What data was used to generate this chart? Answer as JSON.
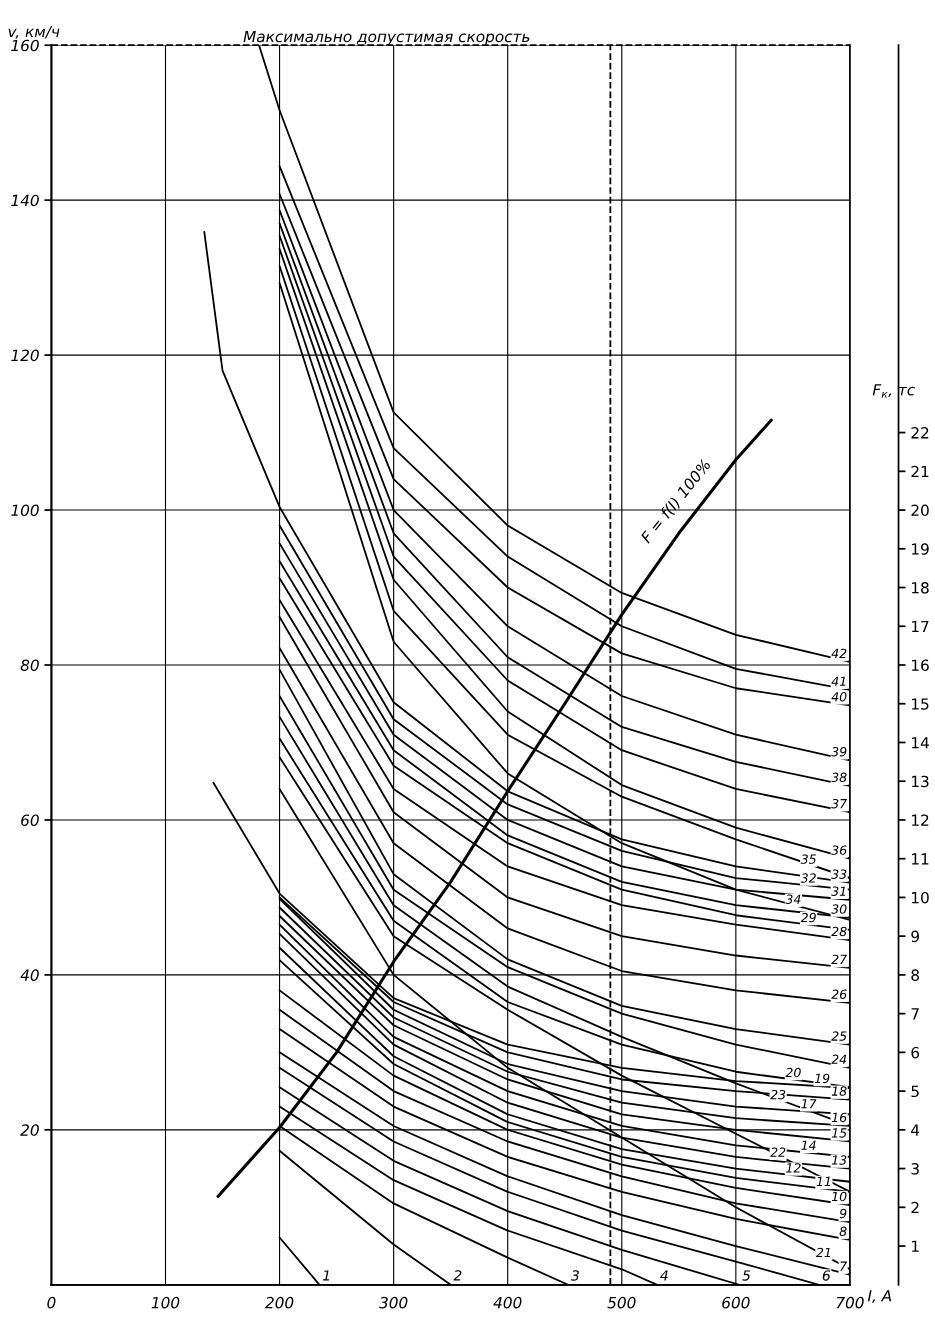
{
  "chart_data": {
    "type": "line",
    "xlabel": "I, A",
    "ylabel": "v, км/ч",
    "y2label": "F$_{к}$, тс",
    "xlim": [
      0,
      700
    ],
    "xticks": [
      0,
      100,
      200,
      300,
      400,
      500,
      600,
      700
    ],
    "ylim": [
      0,
      160
    ],
    "yticks": [
      20,
      40,
      60,
      {
        "value": 80,
        "label": "80"
      },
      100,
      120,
      140,
      160
    ],
    "y2lim": [
      0,
      32
    ],
    "y2ticks": [
      1,
      2,
      3,
      4,
      5,
      6,
      7,
      8,
      9,
      10,
      11,
      12,
      13,
      14,
      15,
      16,
      17,
      18,
      19,
      20,
      21,
      22
    ],
    "grid": true,
    "legend": false,
    "line_style": "solid",
    "ref_lines": [
      {
        "axis": "y",
        "value": 160,
        "label": "Максимально допустимая скорость",
        "line_style": "dashed"
      },
      {
        "axis": "x",
        "value": 490,
        "label": null,
        "line_style": "dashed"
      }
    ],
    "series": [
      {
        "name": "1",
        "color": "#000000",
        "x": [
          200,
          235
        ],
        "values": [
          6.1,
          0
        ]
      },
      {
        "name": "2",
        "color": "#000000",
        "x": [
          200,
          300,
          350
        ],
        "values": [
          17.3,
          5.2,
          0
        ]
      },
      {
        "name": "3",
        "color": "#000000",
        "x": [
          200,
          300,
          400,
          453
        ],
        "values": [
          20.5,
          10.5,
          3.5,
          0
        ]
      },
      {
        "name": "4",
        "color": "#000000",
        "x": [
          200,
          300,
          400,
          500,
          531
        ],
        "values": [
          23,
          13.5,
          7,
          2,
          0
        ]
      },
      {
        "name": "5",
        "color": "#000000",
        "x": [
          200,
          300,
          400,
          500,
          603
        ],
        "values": [
          25.5,
          16,
          9.5,
          4.5,
          0
        ]
      },
      {
        "name": "6",
        "color": "#000000",
        "x": [
          200,
          300,
          400,
          500,
          600,
          673
        ],
        "values": [
          28,
          18.5,
          12,
          7,
          3,
          0
        ]
      },
      {
        "name": "7",
        "color": "#000000",
        "x": [
          200,
          300,
          400,
          500,
          600,
          700
        ],
        "values": [
          30,
          20.5,
          14,
          9,
          5,
          1.3
        ]
      },
      {
        "name": "8",
        "color": "#000000",
        "x": [
          200,
          300,
          400,
          500,
          600,
          700
        ],
        "values": [
          33,
          23,
          16.5,
          12,
          8.5,
          5.8
        ]
      },
      {
        "name": "9",
        "color": "#000000",
        "x": [
          200,
          300,
          400,
          500,
          600,
          700
        ],
        "values": [
          35.5,
          25,
          18.5,
          14,
          10.5,
          8.1
        ]
      },
      {
        "name": "10",
        "color": "#000000",
        "x": [
          200,
          300,
          400,
          500,
          600,
          700
        ],
        "values": [
          38,
          27,
          20,
          15.5,
          12.5,
          10.3
        ]
      },
      {
        "name": "11",
        "color": "#000000",
        "x": [
          200,
          300,
          400,
          500,
          600,
          700
        ],
        "values": [
          41.9,
          28.5,
          21,
          16.5,
          13.8,
          12
        ]
      },
      {
        "name": "12",
        "color": "#000000",
        "x": [
          200,
          300,
          400,
          500,
          600,
          700
        ],
        "values": [
          43.5,
          29.5,
          22,
          17.5,
          15,
          13.3
        ]
      },
      {
        "name": "13",
        "color": "#000000",
        "x": [
          200,
          300,
          400,
          500,
          600,
          700
        ],
        "values": [
          45.3,
          31,
          23.5,
          19,
          16.5,
          15
        ]
      },
      {
        "name": "14",
        "color": "#000000",
        "x": [
          200,
          300,
          400,
          500,
          600,
          700
        ],
        "values": [
          46.5,
          32,
          25,
          20.5,
          18,
          16.5
        ]
      },
      {
        "name": "15",
        "color": "#000000",
        "x": [
          200,
          300,
          400,
          500,
          600,
          700
        ],
        "values": [
          47.6,
          33.5,
          26.5,
          22,
          20,
          18.5
        ]
      },
      {
        "name": "16",
        "color": "#000000",
        "x": [
          200,
          300,
          400,
          500,
          600,
          700
        ],
        "values": [
          48.7,
          34.5,
          27.5,
          23.5,
          21.5,
          20.5
        ]
      },
      {
        "name": "17",
        "color": "#000000",
        "x": [
          200,
          300,
          400,
          500,
          600,
          700
        ],
        "values": [
          49.8,
          35.5,
          28.5,
          25,
          23,
          22
        ]
      },
      {
        "name": "18",
        "color": "#000000",
        "x": [
          200,
          300,
          400,
          500,
          600,
          700
        ],
        "values": [
          50,
          36.5,
          30,
          26.5,
          25,
          23.9
        ]
      },
      {
        "name": "19",
        "color": "#000000",
        "x": [
          142,
          200,
          300,
          400,
          500,
          600,
          700
        ],
        "values": [
          64.8,
          50.5,
          37,
          31,
          28,
          26.3,
          25.4
        ]
      },
      {
        "name": "20",
        "color": "#000000",
        "x": [
          200,
          300,
          400,
          500,
          600,
          700
        ],
        "values": [
          70.5,
          47,
          36.5,
          31,
          27.5,
          25.5
        ]
      },
      {
        "name": "21",
        "color": "#000000",
        "x": [
          200,
          300,
          400,
          500,
          600,
          700
        ],
        "values": [
          64,
          40,
          28,
          19,
          10,
          2
        ]
      },
      {
        "name": "22",
        "color": "#000000",
        "x": [
          200,
          300,
          400,
          500,
          600,
          700
        ],
        "values": [
          68.1,
          45,
          35.5,
          27,
          19.5,
          12
        ]
      },
      {
        "name": "23",
        "color": "#000000",
        "x": [
          200,
          300,
          400,
          500,
          600,
          700
        ],
        "values": [
          73.3,
          49,
          38.5,
          32,
          26,
          20.5
        ]
      },
      {
        "name": "24",
        "color": "#000000",
        "x": [
          200,
          300,
          400,
          500,
          600,
          700
        ],
        "values": [
          76,
          51,
          41,
          35,
          31,
          28
        ]
      },
      {
        "name": "25",
        "color": "#000000",
        "x": [
          200,
          300,
          400,
          500,
          600,
          700
        ],
        "values": [
          79.4,
          53,
          42,
          36,
          33,
          31
        ]
      },
      {
        "name": "26",
        "color": "#000000",
        "x": [
          200,
          300,
          400,
          500,
          600,
          700
        ],
        "values": [
          82.2,
          57,
          46,
          40.5,
          38,
          36.4
        ]
      },
      {
        "name": "27",
        "color": "#000000",
        "x": [
          200,
          300,
          400,
          500,
          600,
          700
        ],
        "values": [
          86.2,
          61,
          50,
          45,
          42.5,
          40.9
        ]
      },
      {
        "name": "28",
        "color": "#000000",
        "x": [
          200,
          300,
          400,
          500,
          600,
          700
        ],
        "values": [
          88.4,
          64,
          54,
          49,
          46.5,
          44.5
        ]
      },
      {
        "name": "29",
        "color": "#000000",
        "x": [
          200,
          300,
          400,
          500,
          600,
          700
        ],
        "values": [
          91.2,
          67,
          57,
          51,
          47.7,
          45.8
        ]
      },
      {
        "name": "30",
        "color": "#000000",
        "x": [
          200,
          300,
          400,
          500,
          600,
          700
        ],
        "values": [
          93.4,
          69,
          58,
          52,
          49,
          47.4
        ]
      },
      {
        "name": "31",
        "color": "#000000",
        "x": [
          200,
          300,
          400,
          500,
          600,
          700
        ],
        "values": [
          95.7,
          71,
          60,
          54,
          51,
          49.7
        ]
      },
      {
        "name": "32",
        "color": "#000000",
        "x": [
          200,
          300,
          400,
          500,
          600,
          700
        ],
        "values": [
          98,
          73,
          62,
          56,
          52.5,
          51
        ]
      },
      {
        "name": "33",
        "color": "#000000",
        "x": [
          134,
          150,
          200,
          300,
          400,
          500,
          600,
          700
        ],
        "values": [
          135.9,
          118,
          100.4,
          75.2,
          63.7,
          57.5,
          54,
          51.9
        ]
      },
      {
        "name": "34",
        "color": "#000000",
        "x": [
          200,
          300,
          400,
          500,
          600,
          700
        ],
        "values": [
          129.3,
          83,
          66,
          57,
          51,
          47.1
        ]
      },
      {
        "name": "35",
        "color": "#000000",
        "x": [
          200,
          300,
          400,
          500,
          600,
          700
        ],
        "values": [
          131.5,
          87,
          71,
          63,
          57.5,
          52.5
        ]
      },
      {
        "name": "36",
        "color": "#000000",
        "x": [
          200,
          300,
          400,
          500,
          600,
          700
        ],
        "values": [
          133.7,
          91,
          74,
          64.5,
          59,
          55
        ]
      },
      {
        "name": "37",
        "color": "#000000",
        "x": [
          200,
          300,
          400,
          500,
          600,
          700
        ],
        "values": [
          135.4,
          94,
          78,
          69,
          64,
          61
        ]
      },
      {
        "name": "38",
        "color": "#000000",
        "x": [
          200,
          300,
          400,
          500,
          600,
          700
        ],
        "values": [
          137,
          97,
          81,
          72,
          67.5,
          64.4
        ]
      },
      {
        "name": "39",
        "color": "#000000",
        "x": [
          200,
          300,
          400,
          500,
          600,
          700
        ],
        "values": [
          138.7,
          100,
          85,
          76,
          71,
          67.7
        ]
      },
      {
        "name": "40",
        "color": "#000000",
        "x": [
          200,
          300,
          400,
          500,
          600,
          700
        ],
        "values": [
          140.8,
          104,
          90,
          81.5,
          77,
          74.8
        ]
      },
      {
        "name": "41",
        "color": "#000000",
        "x": [
          200,
          300,
          400,
          500,
          600,
          700
        ],
        "values": [
          144.4,
          108,
          94,
          85,
          79.5,
          76.8
        ]
      },
      {
        "name": "42",
        "color": "#000000",
        "x": [
          182,
          200,
          300,
          400,
          500,
          600,
          700
        ],
        "values": [
          160,
          151.6,
          112.6,
          98,
          89.3,
          83.9,
          80.4
        ]
      },
      {
        "name": "F = f(I) 100%",
        "color": "#000000",
        "axis": "y2",
        "x": [
          146,
          200,
          250,
          300,
          350,
          400,
          450,
          500,
          550,
          600,
          631
        ],
        "values": [
          2.28,
          4.06,
          6,
          8.34,
          10.4,
          12.74,
          15,
          17.3,
          19.4,
          21.3,
          22.32
        ]
      }
    ]
  }
}
